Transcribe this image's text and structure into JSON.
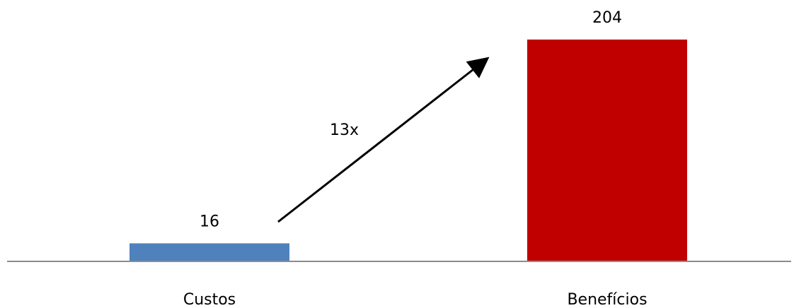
{
  "chart_data": {
    "type": "bar",
    "categories": [
      "Custos",
      "Benefícios"
    ],
    "values": [
      16,
      204
    ],
    "data_labels": [
      "16",
      "204"
    ],
    "colors": [
      "#4f81bd",
      "#c00000"
    ],
    "axis_color": "#8c8c8c",
    "ylim": [
      0,
      204
    ],
    "title": "",
    "xlabel": "",
    "ylabel": "",
    "grid": false,
    "legend": "none",
    "annotation": {
      "text": "13x",
      "type": "arrow",
      "from_category": "Custos",
      "to_category": "Benefícios"
    }
  }
}
